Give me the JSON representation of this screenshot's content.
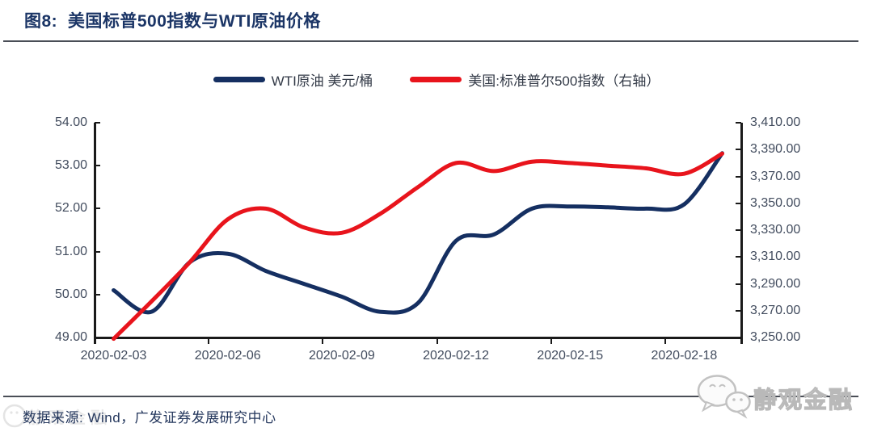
{
  "header": {
    "title": "图8:  美国标普500指数与WTI原油价格"
  },
  "legend": {
    "items": [
      {
        "label": "WTI原油 美元/桶",
        "color": "#152f61"
      },
      {
        "label": "美国:标准普尔500指数（右轴）",
        "color": "#e8141c"
      }
    ]
  },
  "footer": {
    "source": "数据来源: Wind，广发证券发展研究中心",
    "watermark": "静观金融"
  },
  "chart_data": {
    "type": "line",
    "title": "美国标普500指数与WTI原油价格",
    "x": [
      "2020-02-03",
      "2020-02-04",
      "2020-02-05",
      "2020-02-06",
      "2020-02-07",
      "2020-02-08",
      "2020-02-09",
      "2020-02-10",
      "2020-02-11",
      "2020-02-12",
      "2020-02-13",
      "2020-02-14",
      "2020-02-15",
      "2020-02-16",
      "2020-02-17",
      "2020-02-18",
      "2020-02-19"
    ],
    "x_tick_labels": [
      "2020-02-03",
      "2020-02-06",
      "2020-02-09",
      "2020-02-12",
      "2020-02-15",
      "2020-02-18"
    ],
    "x_tick_every": 3,
    "grid": false,
    "legend_position": "top",
    "series": [
      {
        "name": "WTI原油 美元/桶",
        "axis": "left",
        "color": "#152f61",
        "values": [
          50.1,
          49.6,
          50.75,
          50.95,
          50.55,
          50.25,
          49.95,
          49.6,
          49.8,
          51.25,
          51.4,
          52.0,
          52.05,
          52.03,
          52.0,
          52.1,
          53.29
        ]
      },
      {
        "name": "美国:标准普尔500指数（右轴）",
        "axis": "right",
        "color": "#e8141c",
        "values": [
          3249,
          3277,
          3306,
          3338,
          3346,
          3332,
          3328,
          3342,
          3362,
          3380,
          3374,
          3381,
          3380,
          3378,
          3376,
          3372,
          3387
        ]
      }
    ],
    "axes": {
      "left": {
        "min": 49,
        "max": 54,
        "ticks": [
          "54.00",
          "53.00",
          "52.00",
          "51.00",
          "50.00",
          "49.00"
        ]
      },
      "right": {
        "min": 3250,
        "max": 3410,
        "ticks": [
          "3,410.00",
          "3,390.00",
          "3,370.00",
          "3,350.00",
          "3,330.00",
          "3,310.00",
          "3,290.00",
          "3,270.00",
          "3,250.00"
        ]
      }
    }
  }
}
